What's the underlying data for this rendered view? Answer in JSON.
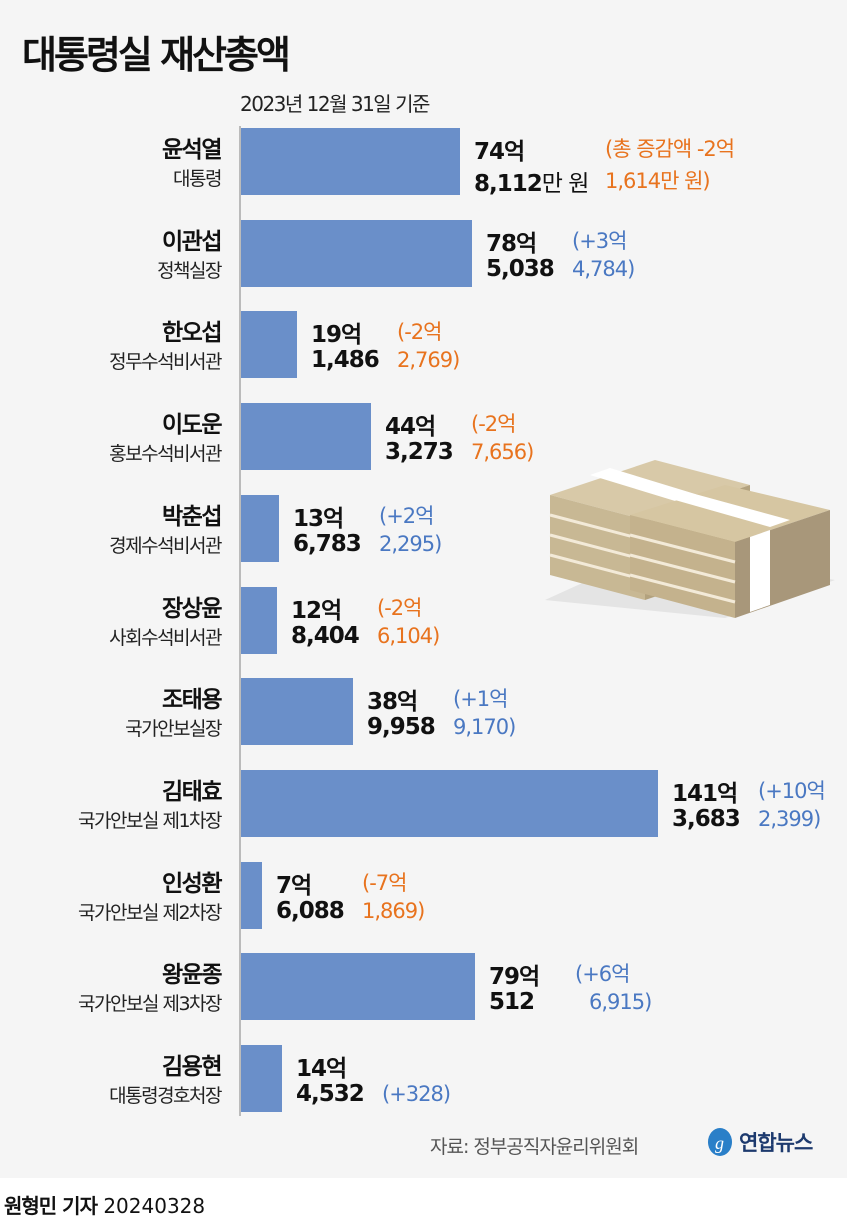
{
  "title": "대통령실 재산총액",
  "subtitle": "2023년 12월 31일 기준",
  "colors": {
    "bar": "#6a8fc9",
    "increase": "#4a78c2",
    "decrease": "#e8731e",
    "background": "#f5f5f5"
  },
  "chart_data": {
    "type": "bar",
    "orientation": "horizontal",
    "unit": "억 원",
    "categories": [
      "윤석열",
      "이관섭",
      "한오섭",
      "이도운",
      "박춘섭",
      "장상윤",
      "조태용",
      "김태효",
      "인성환",
      "왕윤종",
      "김용현"
    ],
    "values": [
      74.8112,
      78.5038,
      19.1486,
      44.3273,
      13.6783,
      12.8404,
      38.9958,
      141.3683,
      7.6088,
      79.0512,
      14.4532
    ],
    "rows": [
      {
        "name": "윤석열",
        "title": "대통령",
        "total": "74억",
        "rest": "8,112",
        "rest_unit": "만 원",
        "change1": "(총 증감액 -2억",
        "change2": "1,614만 원)",
        "dir": "down",
        "value": 74.8112
      },
      {
        "name": "이관섭",
        "title": "정책실장",
        "total": "78억",
        "rest": "5,038",
        "rest_unit": "",
        "change1": "(+3억",
        "change2": "4,784)",
        "dir": "up",
        "value": 78.5038
      },
      {
        "name": "한오섭",
        "title": "정무수석비서관",
        "total": "19억",
        "rest": "1,486",
        "rest_unit": "",
        "change1": "(-2억",
        "change2": "2,769)",
        "dir": "down",
        "value": 19.1486
      },
      {
        "name": "이도운",
        "title": "홍보수석비서관",
        "total": "44억",
        "rest": "3,273",
        "rest_unit": "",
        "change1": "(-2억",
        "change2": "7,656)",
        "dir": "down",
        "value": 44.3273
      },
      {
        "name": "박춘섭",
        "title": "경제수석비서관",
        "total": "13억",
        "rest": "6,783",
        "rest_unit": "",
        "change1": "(+2억",
        "change2": "2,295)",
        "dir": "up",
        "value": 13.6783
      },
      {
        "name": "장상윤",
        "title": "사회수석비서관",
        "total": "12억",
        "rest": "8,404",
        "rest_unit": "",
        "change1": "(-2억",
        "change2": "6,104)",
        "dir": "down",
        "value": 12.8404
      },
      {
        "name": "조태용",
        "title": "국가안보실장",
        "total": "38억",
        "rest": "9,958",
        "rest_unit": "",
        "change1": "(+1억",
        "change2": "9,170)",
        "dir": "up",
        "value": 38.9958
      },
      {
        "name": "김태효",
        "title": "국가안보실 제1차장",
        "total": "141억",
        "rest": "3,683",
        "rest_unit": "",
        "change1": "(+10억",
        "change2": "2,399)",
        "dir": "up",
        "value": 141.3683
      },
      {
        "name": "인성환",
        "title": "국가안보실 제2차장",
        "total": "7억",
        "rest": "6,088",
        "rest_unit": "",
        "change1": "(-7억",
        "change2": "1,869)",
        "dir": "down",
        "value": 7.6088
      },
      {
        "name": "왕윤종",
        "title": "국가안보실 제3차장",
        "total": "79억",
        "rest": "512",
        "rest_unit": "",
        "change1": "(+6억",
        "change2": "6,915)",
        "dir": "up",
        "value": 79.0512
      },
      {
        "name": "김용현",
        "title": "대통령경호처장",
        "total": "14억",
        "rest": "4,532",
        "rest_unit": "",
        "change1": "",
        "change2": "(+328)",
        "dir": "up",
        "value": 14.4532
      }
    ]
  },
  "source": "자료: 정부공직자윤리위원회",
  "logo": "연합뉴스",
  "credit": {
    "author": "원형민 기자",
    "date": "20240328"
  }
}
